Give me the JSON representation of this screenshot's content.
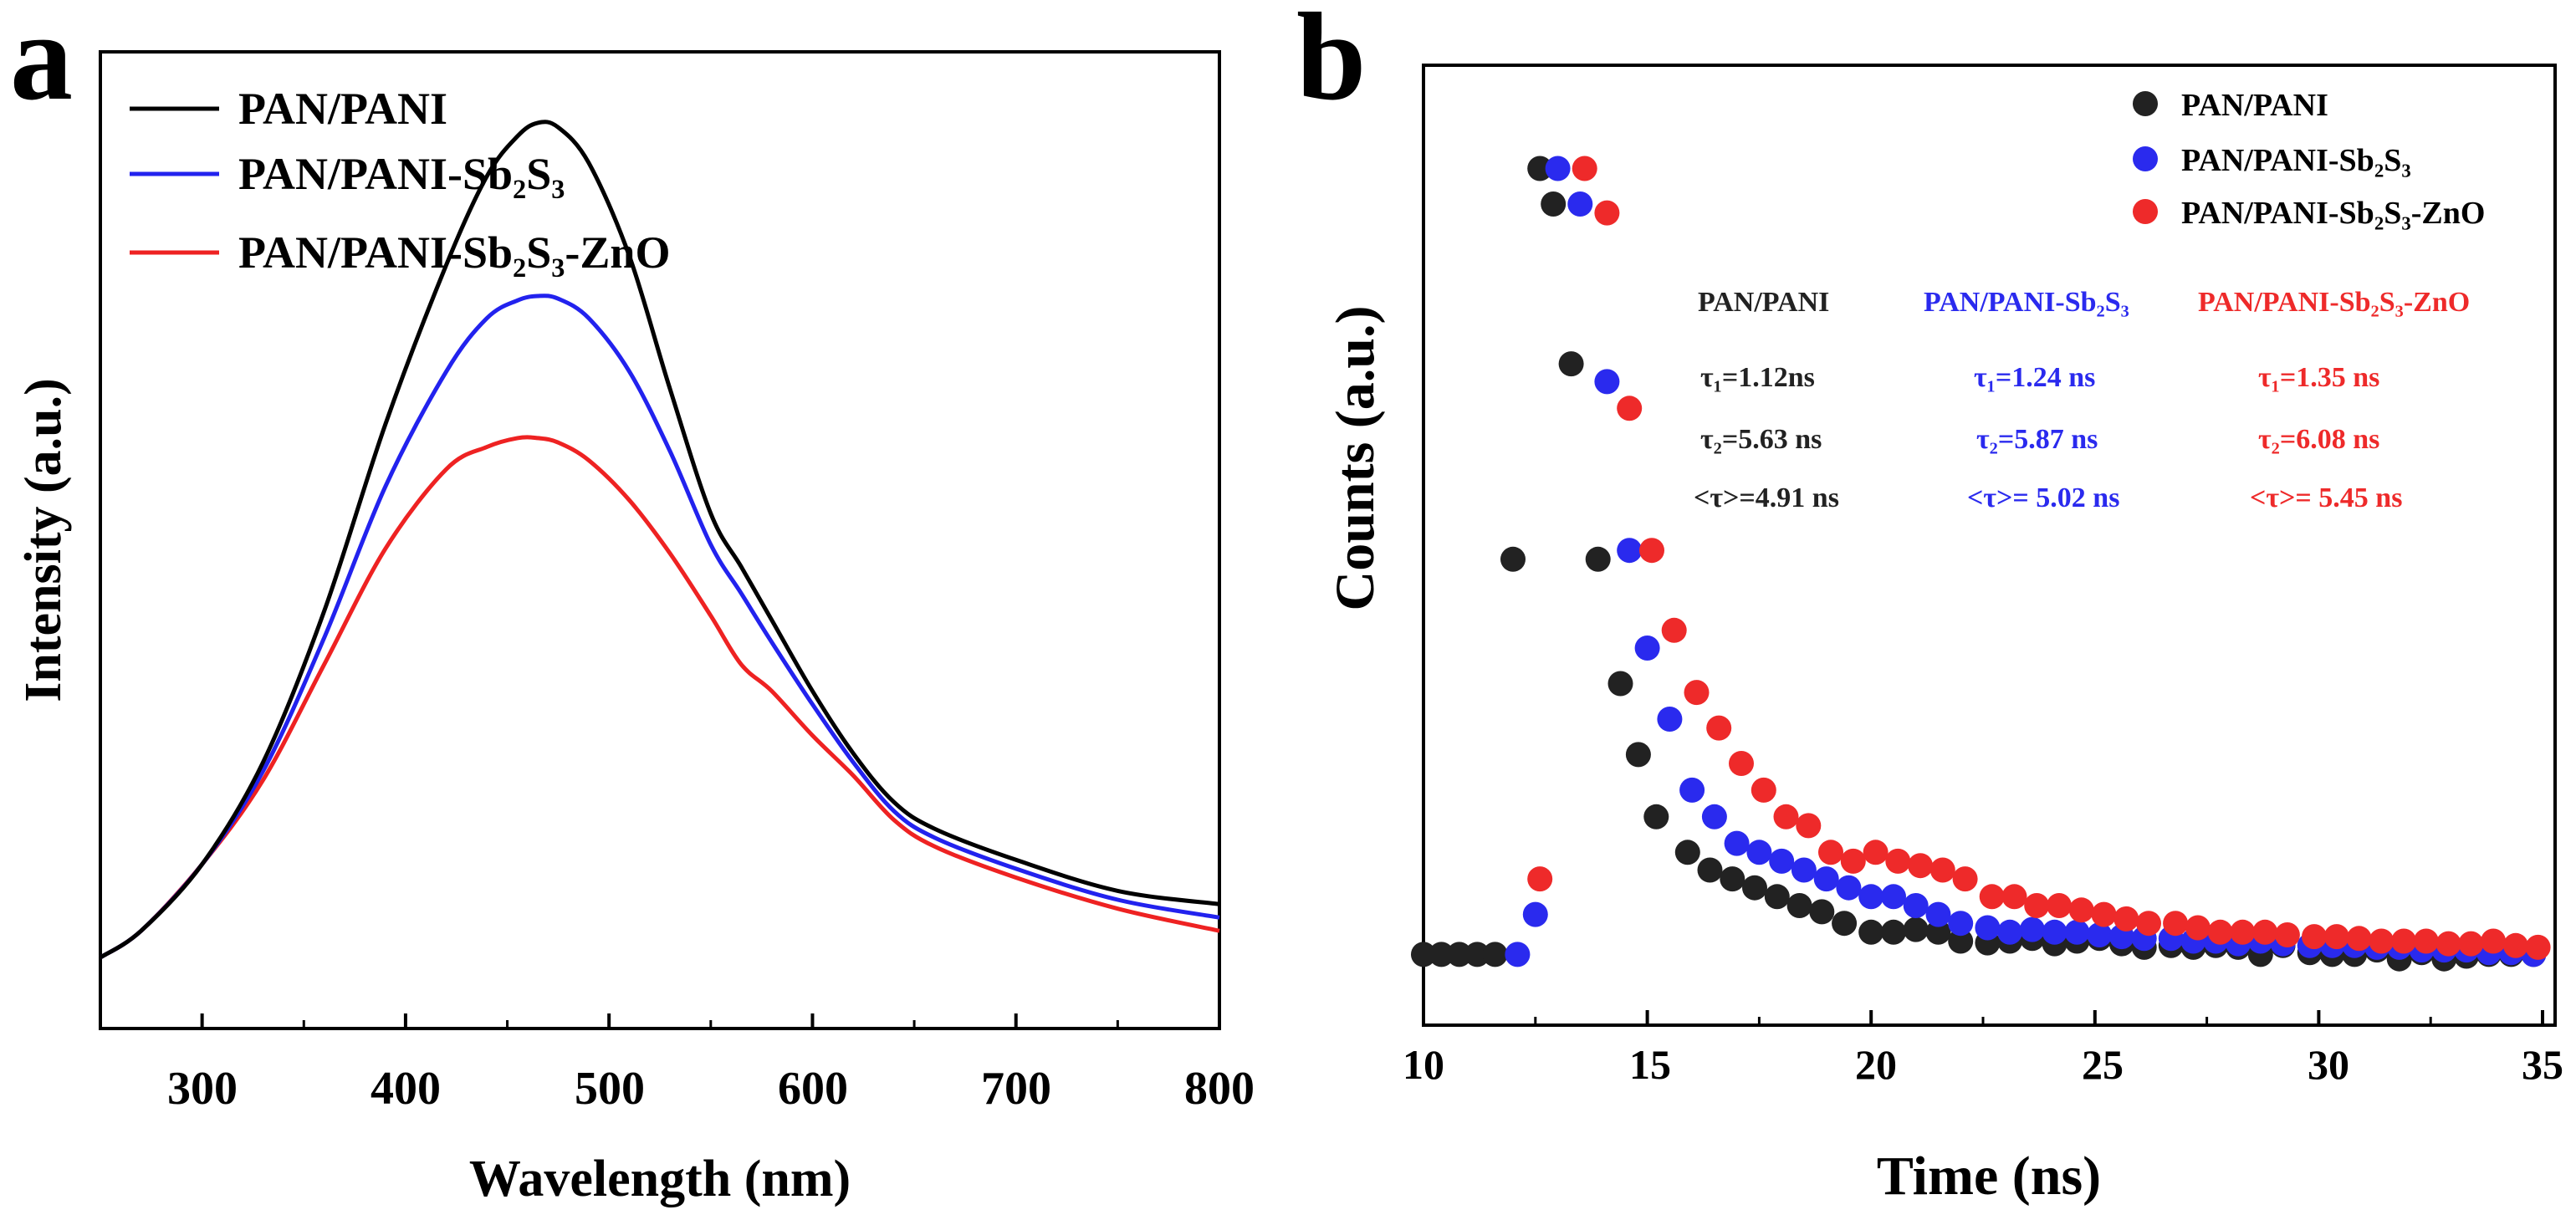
{
  "chart_data": [
    {
      "panel": "a",
      "type": "line",
      "xlabel": "Wavelength (nm)",
      "ylabel": "Intensity (a.u.)",
      "xlim": [
        250,
        800
      ],
      "ylim": [
        0,
        1.1
      ],
      "xticks": [
        "300",
        "400",
        "500",
        "600",
        "700",
        "800"
      ],
      "yticks_shown": false,
      "legend_position": "top-left",
      "series": [
        {
          "name": "PAN/PANI",
          "color": "#000000",
          "x": [
            250,
            270,
            300,
            330,
            360,
            390,
            420,
            440,
            455,
            465,
            475,
            490,
            510,
            530,
            550,
            565,
            580,
            600,
            620,
            640,
            660,
            700,
            750,
            800
          ],
          "y": [
            0.08,
            0.11,
            0.185,
            0.3,
            0.47,
            0.68,
            0.86,
            0.96,
            1.005,
            1.02,
            1.015,
            0.975,
            0.87,
            0.72,
            0.58,
            0.52,
            0.46,
            0.38,
            0.31,
            0.255,
            0.225,
            0.19,
            0.155,
            0.14
          ]
        },
        {
          "name": "PAN/PANI-Sb₂S₃",
          "color": "#2222ee",
          "x": [
            250,
            270,
            300,
            330,
            360,
            390,
            420,
            440,
            455,
            465,
            475,
            490,
            510,
            530,
            550,
            565,
            580,
            600,
            620,
            640,
            660,
            700,
            750,
            800
          ],
          "y": [
            0.08,
            0.11,
            0.185,
            0.29,
            0.44,
            0.61,
            0.74,
            0.8,
            0.82,
            0.825,
            0.822,
            0.8,
            0.74,
            0.65,
            0.545,
            0.49,
            0.435,
            0.365,
            0.3,
            0.245,
            0.215,
            0.18,
            0.145,
            0.125
          ]
        },
        {
          "name": "PAN/PANI-Sb₂S₃-ZnO",
          "color": "#ee2222",
          "x": [
            250,
            270,
            300,
            330,
            360,
            390,
            420,
            440,
            455,
            465,
            475,
            490,
            510,
            530,
            550,
            565,
            580,
            600,
            620,
            640,
            660,
            700,
            750,
            800
          ],
          "y": [
            0.08,
            0.11,
            0.185,
            0.28,
            0.41,
            0.54,
            0.63,
            0.655,
            0.665,
            0.665,
            0.66,
            0.64,
            0.595,
            0.535,
            0.465,
            0.41,
            0.38,
            0.33,
            0.285,
            0.235,
            0.205,
            0.17,
            0.135,
            0.11
          ]
        }
      ]
    },
    {
      "panel": "b",
      "type": "scatter",
      "xlabel": "Time (ns)",
      "ylabel": "Counts (a.u.)",
      "xlim": [
        10,
        35
      ],
      "ylim": [
        0,
        1.0
      ],
      "xticks": [
        "10",
        "15",
        "20",
        "25",
        "30",
        "35"
      ],
      "yticks_shown": false,
      "legend_position": "top-right",
      "series": [
        {
          "name": "PAN/PANI",
          "color": "#222222",
          "x": [
            10.0,
            10.4,
            10.8,
            11.2,
            11.6,
            12.0,
            12.6,
            12.9,
            13.3,
            13.9,
            14.4,
            14.8,
            15.2,
            15.9,
            16.4,
            16.9,
            17.4,
            17.9,
            18.4,
            18.9,
            19.4,
            20.0,
            20.5,
            21.0,
            21.5,
            22.0,
            22.6,
            23.1,
            23.6,
            24.1,
            24.6,
            25.1,
            25.6,
            26.1,
            26.7,
            27.2,
            27.7,
            28.2,
            28.7,
            29.2,
            29.8,
            30.3,
            30.8,
            31.3,
            31.8,
            32.3,
            32.8,
            33.3,
            33.8,
            34.3,
            34.8
          ],
          "y": [
            0.01,
            0.01,
            0.01,
            0.01,
            0.01,
            0.455,
            0.895,
            0.855,
            0.675,
            0.455,
            0.315,
            0.235,
            0.165,
            0.125,
            0.105,
            0.095,
            0.085,
            0.075,
            0.065,
            0.058,
            0.045,
            0.035,
            0.035,
            0.038,
            0.035,
            0.025,
            0.023,
            0.025,
            0.028,
            0.022,
            0.025,
            0.028,
            0.022,
            0.018,
            0.02,
            0.018,
            0.02,
            0.018,
            0.01,
            0.02,
            0.012,
            0.01,
            0.01,
            0.015,
            0.005,
            0.012,
            0.005,
            0.008,
            0.01,
            0.01,
            0.01
          ]
        },
        {
          "name": "PAN/PANI-Sb₂S₃",
          "color": "#2a2aee",
          "x": [
            12.1,
            12.5,
            13.0,
            13.5,
            14.1,
            14.6,
            15.0,
            15.5,
            16.0,
            16.5,
            17.0,
            17.5,
            18.0,
            18.5,
            19.0,
            19.5,
            20.0,
            20.5,
            21.0,
            21.5,
            22.0,
            22.6,
            23.1,
            23.6,
            24.1,
            24.6,
            25.1,
            25.6,
            26.1,
            26.7,
            27.2,
            27.7,
            28.2,
            28.7,
            29.2,
            29.8,
            30.3,
            30.8,
            31.3,
            31.8,
            32.3,
            32.8,
            33.3,
            33.8,
            34.3,
            34.8
          ],
          "y": [
            0.01,
            0.055,
            0.895,
            0.855,
            0.655,
            0.465,
            0.355,
            0.275,
            0.195,
            0.165,
            0.135,
            0.125,
            0.115,
            0.105,
            0.095,
            0.085,
            0.075,
            0.075,
            0.065,
            0.055,
            0.045,
            0.04,
            0.035,
            0.038,
            0.035,
            0.035,
            0.032,
            0.03,
            0.028,
            0.028,
            0.025,
            0.025,
            0.022,
            0.025,
            0.022,
            0.02,
            0.02,
            0.02,
            0.018,
            0.018,
            0.015,
            0.015,
            0.015,
            0.012,
            0.012,
            0.01
          ]
        },
        {
          "name": "PAN/PANI-Sb₂S₃-ZnO",
          "color": "#ee2a2a",
          "x": [
            12.6,
            13.6,
            14.1,
            14.6,
            15.1,
            15.6,
            16.1,
            16.6,
            17.1,
            17.6,
            18.1,
            18.6,
            19.1,
            19.6,
            20.1,
            20.6,
            21.1,
            21.6,
            22.1,
            22.7,
            23.2,
            23.7,
            24.2,
            24.7,
            25.2,
            25.7,
            26.2,
            26.8,
            27.3,
            27.8,
            28.3,
            28.8,
            29.3,
            29.9,
            30.4,
            30.9,
            31.4,
            31.9,
            32.4,
            32.9,
            33.4,
            33.9,
            34.4,
            34.9
          ],
          "y": [
            0.095,
            0.895,
            0.845,
            0.625,
            0.465,
            0.375,
            0.305,
            0.265,
            0.225,
            0.195,
            0.165,
            0.155,
            0.125,
            0.115,
            0.125,
            0.115,
            0.11,
            0.105,
            0.095,
            0.075,
            0.075,
            0.065,
            0.065,
            0.06,
            0.055,
            0.05,
            0.045,
            0.045,
            0.04,
            0.035,
            0.035,
            0.035,
            0.032,
            0.03,
            0.03,
            0.028,
            0.025,
            0.025,
            0.025,
            0.022,
            0.022,
            0.025,
            0.02,
            0.018
          ]
        }
      ]
    }
  ],
  "panels": {
    "a": {
      "label": "a"
    },
    "b": {
      "label": "b"
    }
  },
  "lifetimes": {
    "PAN/PANI": {
      "name": "PAN/PANI",
      "tau1": "τ₁=1.12ns",
      "tau2": "τ₂=5.63 ns",
      "tau_avg": "<τ>=4.91 ns",
      "color": "#222222"
    },
    "PAN/PANI-Sb₂S₃": {
      "name": "PAN/PANI-Sb₂S₃",
      "tau1": "τ₁=1.24 ns",
      "tau2": "τ₂=5.87 ns",
      "tau_avg": "<τ>= 5.02 ns",
      "color": "#2a2aee"
    },
    "PAN/PANI-Sb₂S₃-ZnO": {
      "name": "PAN/PANI-Sb₂S₃-ZnO",
      "tau1": "τ₁=1.35 ns",
      "tau2": "τ₂=6.08 ns",
      "tau_avg": "<τ>= 5.45 ns",
      "color": "#ee2a2a"
    }
  }
}
